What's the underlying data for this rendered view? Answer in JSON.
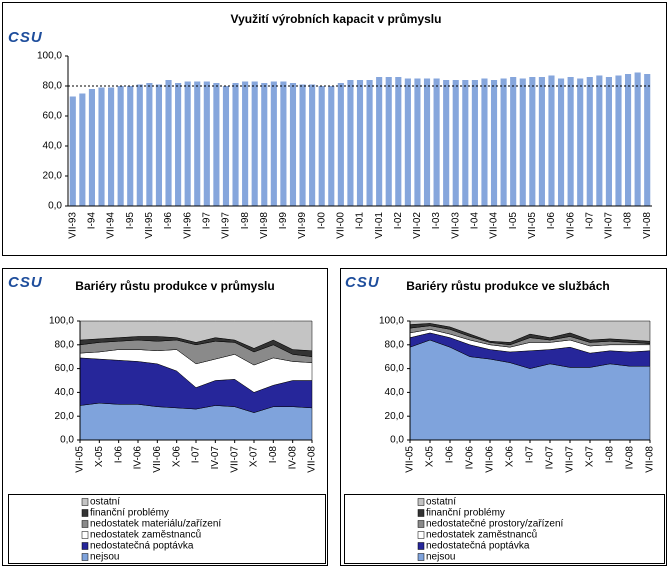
{
  "logo": "CSU",
  "chart_data": [
    {
      "type": "bar",
      "title": "Využití výrobních kapacit v průmyslu",
      "color": "#86a6dc",
      "categories": [
        "VII-93",
        null,
        "I-94",
        null,
        "VII-94",
        null,
        "I-95",
        null,
        "VII-95",
        null,
        "I-96",
        null,
        "VII-96",
        null,
        "I-97",
        null,
        "VII-97",
        null,
        "I-98",
        null,
        "VII-98",
        null,
        "I-99",
        null,
        "VII-99",
        null,
        "I-00",
        null,
        "VII-00",
        null,
        "I-01",
        null,
        "VII-01",
        null,
        "I-02",
        null,
        "VII-02",
        null,
        "I-03",
        null,
        "VII-03",
        null,
        "I-04",
        null,
        "VII-04",
        null,
        "I-05",
        null,
        "VII-05",
        null,
        "I-06",
        null,
        "VII-06",
        null,
        "I-07",
        null,
        "VII-07",
        null,
        "I-08",
        null,
        "VII-08"
      ],
      "values": [
        73,
        75,
        78,
        79,
        79,
        80,
        80,
        81,
        82,
        81,
        84,
        82,
        83,
        83,
        83,
        82,
        80,
        82,
        83,
        83,
        82,
        83,
        83,
        82,
        81,
        81,
        80,
        80,
        82,
        84,
        84,
        84,
        86,
        86,
        86,
        85,
        85,
        85,
        85,
        84,
        84,
        84,
        84,
        85,
        84,
        85,
        86,
        85,
        86,
        86,
        87,
        85,
        86,
        85,
        86,
        87,
        86,
        87,
        88,
        89,
        88
      ],
      "ylim": [
        0,
        100
      ],
      "yticks": [
        {
          "value": 0,
          "label": "0,0"
        },
        {
          "value": 20,
          "label": "20,0"
        },
        {
          "value": 40,
          "label": "40,0"
        },
        {
          "value": 60,
          "label": "60,0"
        },
        {
          "value": 80,
          "label": "80,0"
        },
        {
          "value": 100,
          "label": "100,0"
        }
      ],
      "reference_line": 80
    },
    {
      "type": "area",
      "stacked": true,
      "title": "Bariéry růstu produkce v průmyslu",
      "categories": [
        "VII-05",
        "X-05",
        "I-06",
        "IV-06",
        "VII-06",
        "X-06",
        "I-07",
        "IV-07",
        "VII-07",
        "X-07",
        "I-08",
        "IV-08",
        "VII-08"
      ],
      "series": [
        {
          "name": "nejsou",
          "color": "#7fa3dc",
          "values": [
            29,
            31,
            30,
            30,
            28,
            27,
            26,
            29,
            28,
            23,
            28,
            28,
            27
          ]
        },
        {
          "name": "nedostatečná poptávka",
          "color": "#26269a",
          "values": [
            40,
            37,
            37,
            36,
            36,
            31,
            18,
            21,
            23,
            17,
            18,
            22,
            23
          ]
        },
        {
          "name": "nedostatek zaměstnanců",
          "color": "#ffffff",
          "values": [
            4,
            6,
            9,
            10,
            11,
            18,
            20,
            18,
            21,
            23,
            23,
            16,
            15
          ]
        },
        {
          "name": "nedostatek materiálu/zařízení",
          "color": "#8a8a8a",
          "values": [
            7,
            8,
            7,
            8,
            8,
            8,
            16,
            15,
            10,
            11,
            11,
            6,
            5
          ]
        },
        {
          "name": "finanční problémy",
          "color": "#333333",
          "values": [
            4,
            3,
            3,
            3,
            4,
            2,
            2,
            3,
            2,
            3,
            4,
            4,
            5
          ]
        },
        {
          "name": "ostatní",
          "color": "#c4c4c4",
          "values": [
            16,
            15,
            14,
            13,
            13,
            14,
            18,
            14,
            16,
            23,
            16,
            24,
            25
          ]
        }
      ],
      "ylim": [
        0,
        100
      ],
      "yticks": [
        {
          "value": 0,
          "label": "0,0"
        },
        {
          "value": 20,
          "label": "20,0"
        },
        {
          "value": 40,
          "label": "40,0"
        },
        {
          "value": 60,
          "label": "60,0"
        },
        {
          "value": 80,
          "label": "80,0"
        },
        {
          "value": 100,
          "label": "100,0"
        }
      ]
    },
    {
      "type": "area",
      "stacked": true,
      "title": "Bariéry růstu produkce ve službách",
      "categories": [
        "VII-05",
        "X-05",
        "I-06",
        "IV-06",
        "VII-06",
        "X-06",
        "I-07",
        "IV-07",
        "VII-07",
        "X-07",
        "I-08",
        "IV-08",
        "VII-08"
      ],
      "series": [
        {
          "name": "nejsou",
          "color": "#7fa3dc",
          "values": [
            78,
            84,
            78,
            70,
            68,
            65,
            60,
            64,
            61,
            61,
            64,
            62,
            62
          ]
        },
        {
          "name": "nedostatečná poptávka",
          "color": "#26269a",
          "values": [
            8,
            6,
            8,
            10,
            8,
            9,
            15,
            12,
            17,
            12,
            11,
            12,
            13
          ]
        },
        {
          "name": "nedostatek zaměstnanců",
          "color": "#ffffff",
          "values": [
            4,
            3,
            3,
            4,
            4,
            4,
            7,
            6,
            6,
            6,
            5,
            6,
            5
          ]
        },
        {
          "name": "nedostatečné prostory/zařízení",
          "color": "#8a8a8a",
          "values": [
            4,
            3,
            4,
            3,
            2,
            2,
            4,
            2,
            3,
            3,
            3,
            2,
            1
          ]
        },
        {
          "name": "finanční problémy",
          "color": "#333333",
          "values": [
            3,
            2,
            2,
            2,
            1,
            2,
            3,
            2,
            3,
            2,
            2,
            2,
            2
          ]
        },
        {
          "name": "ostatní",
          "color": "#c4c4c4",
          "values": [
            3,
            2,
            5,
            11,
            17,
            18,
            11,
            14,
            10,
            16,
            15,
            16,
            17
          ]
        }
      ],
      "ylim": [
        0,
        100
      ],
      "yticks": [
        {
          "value": 0,
          "label": "0,0"
        },
        {
          "value": 20,
          "label": "20,0"
        },
        {
          "value": 40,
          "label": "40,0"
        },
        {
          "value": 60,
          "label": "60,0"
        },
        {
          "value": 80,
          "label": "80,0"
        },
        {
          "value": 100,
          "label": "100,0"
        }
      ]
    }
  ]
}
